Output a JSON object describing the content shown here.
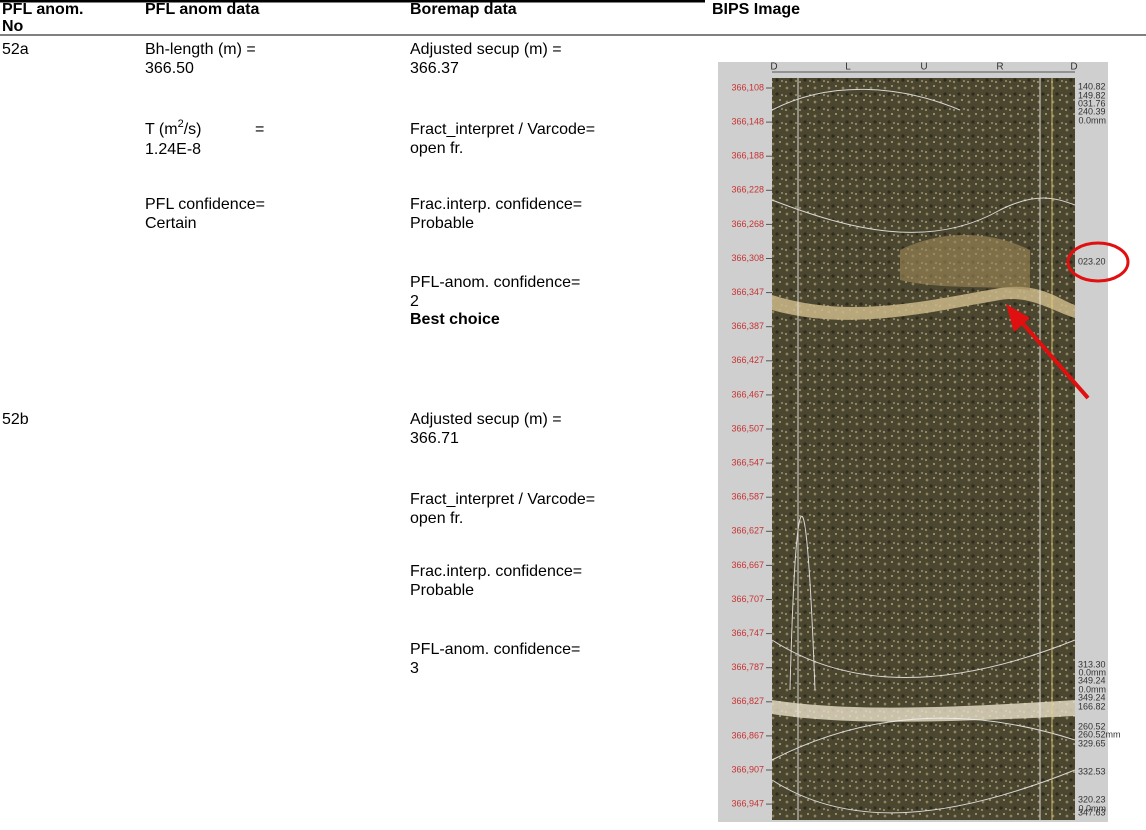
{
  "table": {
    "columns": [
      [
        "PFL anom.",
        "No"
      ],
      "PFL anom data",
      "Boremap data",
      "BIPS Image"
    ],
    "rows": [
      {
        "anomaly": "52a",
        "pfl_data": {
          "bh_length_label": "Bh-length (m) =",
          "bh_length": "366.50",
          "t_label": "T (m",
          "t_sup": "2",
          "t_unit": "/s)",
          "t_eq": "=",
          "t_value": "1.24E-8",
          "confidence_label": "PFL confidence=",
          "confidence": "Certain"
        },
        "boremap": [
          [
            "Adjusted secup (m) =",
            "366.37"
          ],
          [
            "Fract_interpret / Varcode=",
            "open fr."
          ],
          [
            "Frac.interp. confidence=",
            "Probable"
          ],
          [
            "PFL-anom. confidence=",
            "2"
          ]
        ],
        "note": "Best choice"
      },
      {
        "anomaly": "52b",
        "boremap": [
          [
            "Adjusted secup (m) =",
            "366.71"
          ],
          [
            "Fract_interpret / Varcode=",
            "open fr."
          ],
          [
            "Frac.interp. confidence=",
            "Probable"
          ],
          [
            "PFL-anom. confidence=",
            "3"
          ]
        ]
      }
    ],
    "bips_image": {
      "orientation": [
        "D",
        "L",
        "U",
        "R",
        "D"
      ],
      "depths": [
        "366,108",
        "366,148",
        "366,188",
        "366,228",
        "366,268",
        "366,308",
        "366,347",
        "366,387",
        "366,427",
        "366,467",
        "366,507",
        "366,547",
        "366,587",
        "366,627",
        "366,667",
        "366,707",
        "366,747",
        "366,787",
        "366,827",
        "366,867",
        "366,907",
        "366,947"
      ],
      "annotations": [
        "140.82",
        "149.82",
        "031.76",
        "240.39",
        "0.0mm",
        "023.20",
        "313.30",
        "0.0mm",
        "349.24",
        "0.0mm",
        "349.24",
        "166.82",
        "260.52",
        "260.52mm",
        "329.65",
        "332.53",
        "320.23",
        "0.0mm",
        "347.63"
      ]
    }
  }
}
